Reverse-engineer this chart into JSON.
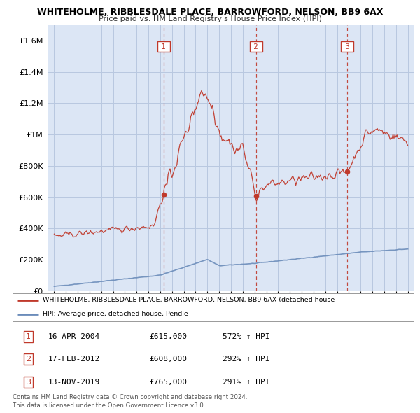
{
  "title": "WHITEHOLME, RIBBLESDALE PLACE, BARROWFORD, NELSON, BB9 6AX",
  "subtitle": "Price paid vs. HM Land Registry's House Price Index (HPI)",
  "yticks": [
    0,
    200000,
    400000,
    600000,
    800000,
    1000000,
    1200000,
    1400000,
    1600000
  ],
  "ylim_max": 1700000,
  "sale_years": [
    2004.29,
    2012.12,
    2019.87
  ],
  "sale_prices": [
    615000,
    608000,
    765000
  ],
  "sale_labels": [
    "1",
    "2",
    "3"
  ],
  "sale_pct": [
    "572%",
    "292%",
    "291%"
  ],
  "sale_info": [
    "16-APR-2004",
    "17-FEB-2012",
    "13-NOV-2019"
  ],
  "sale_prices_str": [
    "£615,000",
    "£608,000",
    "£765,000"
  ],
  "legend_line1": "WHITEHOLME, RIBBLESDALE PLACE, BARROWFORD, NELSON, BB9 6AX (detached house",
  "legend_line2": "HPI: Average price, detached house, Pendle",
  "footer1": "Contains HM Land Registry data © Crown copyright and database right 2024.",
  "footer2": "This data is licensed under the Open Government Licence v3.0.",
  "bg_color": "#dce6f5",
  "red_color": "#c0392b",
  "blue_color": "#6b8cba",
  "grid_color": "#b8c8e0",
  "vline_color": "#c0392b"
}
